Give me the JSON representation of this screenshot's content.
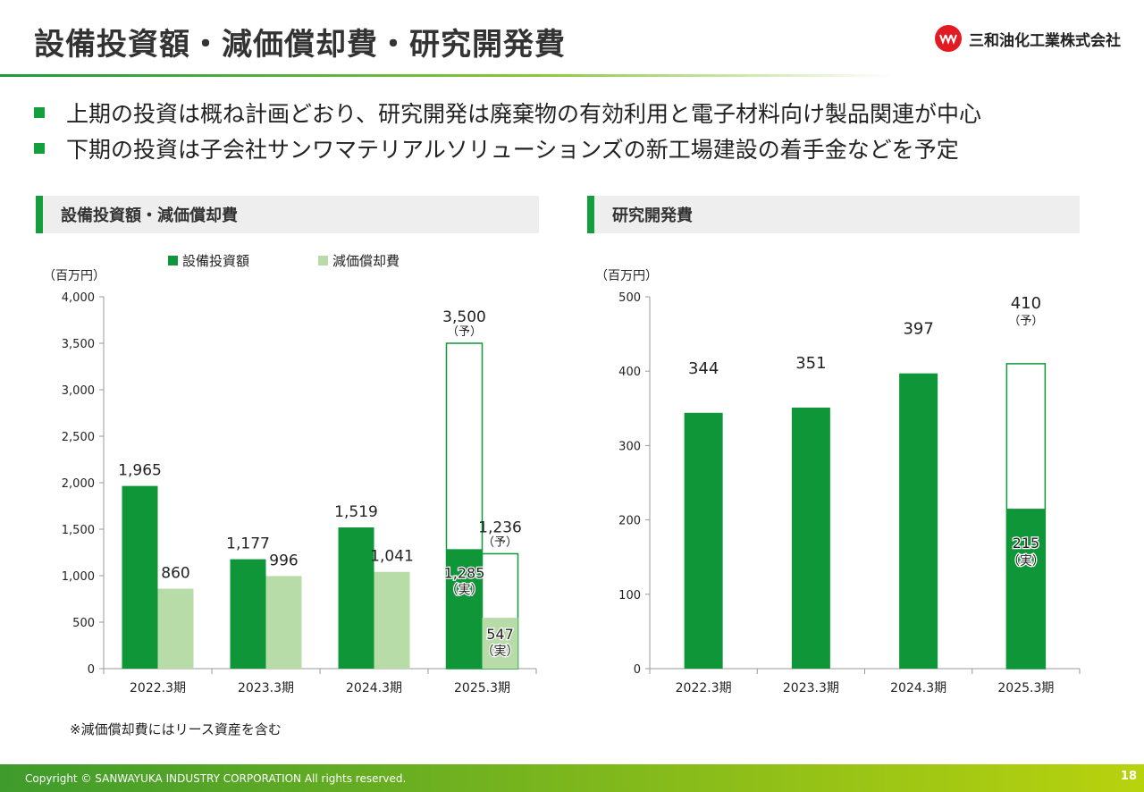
{
  "slide": {
    "title": "設備投資額・減価償却費・研究開発費",
    "company": "三和油化工業株式会社",
    "bullets": [
      "上期の投資は概ね計画どおり、研究開発は廃棄物の有効利用と電子材料向け製品関連が中心",
      "下期の投資は子会社サンワマテリアルソリューションズの新工場建設の着手金などを予定"
    ],
    "note": "※減価償却費にはリース資産を含む",
    "copyright": "Copyright © SANWAYUKA INDUSTRY CORPORATION All rights reserved.",
    "page_number": "18"
  },
  "colors": {
    "capex": "#0e9638",
    "depreciation": "#b7dca8",
    "brand_red": "#e21a22"
  },
  "chart_data": [
    {
      "type": "bar",
      "title": "設備投資額・減価償却費",
      "unit": "（百万円）",
      "categories": [
        "2022.3期",
        "2023.3期",
        "2024.3期",
        "2025.3期"
      ],
      "ylim": [
        0,
        4000
      ],
      "yticks": [
        0,
        500,
        1000,
        1500,
        2000,
        2500,
        3000,
        3500,
        4000
      ],
      "ytick_labels": [
        "0",
        "500",
        "1,000",
        "1,500",
        "2,000",
        "2,500",
        "3,000",
        "3,500",
        "4,000"
      ],
      "legend_position": "top",
      "series": [
        {
          "name": "設備投資額",
          "values": [
            1965,
            1177,
            1519,
            1285
          ],
          "labels": [
            "1,965",
            "1,177",
            "1,519",
            "1,285"
          ],
          "forecast": [
            null,
            null,
            null,
            3500
          ],
          "forecast_labels": [
            "",
            "",
            "",
            "3,500"
          ]
        },
        {
          "name": "減価償却費",
          "values": [
            860,
            996,
            1041,
            547
          ],
          "labels": [
            "860",
            "996",
            "1,041",
            "547"
          ],
          "forecast": [
            null,
            null,
            null,
            1236
          ],
          "forecast_labels": [
            "",
            "",
            "",
            "1,236"
          ]
        }
      ],
      "actual_tag": "（実）",
      "forecast_tag": "（予）"
    },
    {
      "type": "bar",
      "title": "研究開発費",
      "unit": "（百万円）",
      "categories": [
        "2022.3期",
        "2023.3期",
        "2024.3期",
        "2025.3期"
      ],
      "ylim": [
        0,
        500
      ],
      "yticks": [
        0,
        100,
        200,
        300,
        400,
        500
      ],
      "ytick_labels": [
        "0",
        "100",
        "200",
        "300",
        "400",
        "500"
      ],
      "series": [
        {
          "values": [
            344,
            351,
            397,
            215
          ],
          "labels": [
            "344",
            "351",
            "397",
            "215"
          ],
          "forecast": [
            null,
            null,
            null,
            410
          ],
          "forecast_labels": [
            "",
            "",
            "",
            "410"
          ]
        }
      ],
      "actual_tag": "（実）",
      "forecast_tag": "（予）"
    }
  ]
}
